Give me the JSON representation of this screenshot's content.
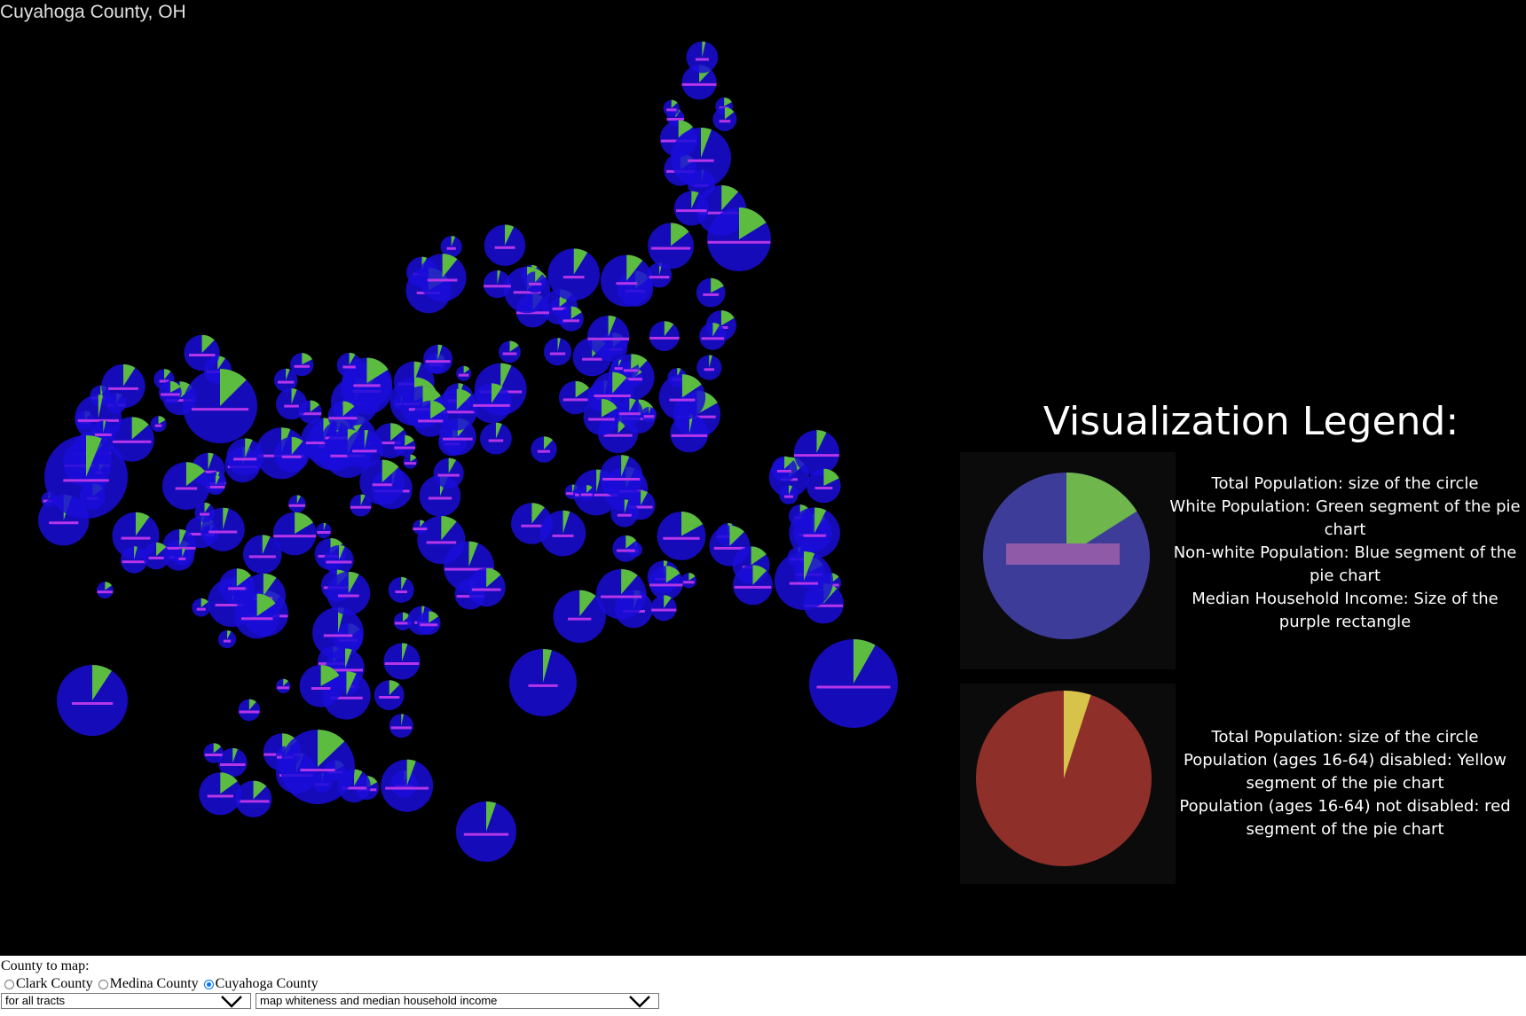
{
  "page": {
    "title": "Cuyahoga County, OH"
  },
  "colors": {
    "background": "#000000",
    "circle": "#1a0dd9",
    "white_segment": "#5cbc40",
    "income_bar": "#b535e8",
    "legend_blue": "#3e3c99",
    "legend_green": "#6fb64c",
    "legend_purple": "#8f5aa8",
    "legend_red": "#8f2f29",
    "legend_yellow": "#d7c24a"
  },
  "legend": {
    "heading": "Visualization Legend:",
    "panel1": {
      "icon": "race-income-pie-icon",
      "green_fraction": 0.16,
      "lines": [
        "Total Population: size of the circle",
        "White Population: Green segment of the pie",
        "chart",
        "Non-white Population: Blue segment of the",
        "pie chart",
        "Median Household Income: Size of the",
        "purple rectangle"
      ]
    },
    "panel2": {
      "icon": "disability-pie-icon",
      "yellow_fraction": 0.05,
      "lines": [
        "Total Population: size of the circle",
        "Population (ages 16-64) disabled: Yellow",
        "segment of the pie chart",
        "Population (ages 16-64) not disabled: red",
        "segment of the pie chart"
      ]
    }
  },
  "controls": {
    "label": "County to map:",
    "radios": [
      {
        "label": "Clark County",
        "checked": false
      },
      {
        "label": "Medina County",
        "checked": false
      },
      {
        "label": "Cuyahoga County",
        "checked": true
      }
    ],
    "select_tracts": {
      "value": "for all tracts",
      "icon": "chevron-down-icon"
    },
    "select_mapping": {
      "value": "map whiteness and median household income",
      "icon": "chevron-down-icon"
    }
  }
}
